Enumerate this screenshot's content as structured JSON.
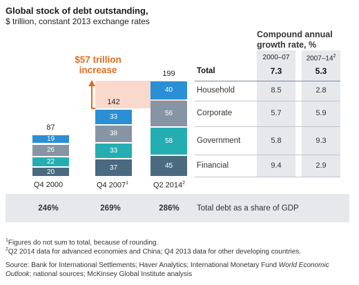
{
  "title": "Global stock of debt outstanding,",
  "subtitle": "$ trillion, constant 2013 exchange rates",
  "cagr": {
    "title_line1": "Compound annual",
    "title_line2": "growth rate, %",
    "col1": "2000–07",
    "col2": "2007–14",
    "col2_sup": "2"
  },
  "increase": {
    "line1": "$57 trillion",
    "line2": "increase"
  },
  "chart_data": {
    "type": "bar",
    "stacked": true,
    "categories": [
      "Q4 2000",
      "Q4 2007",
      "Q2 2014"
    ],
    "category_sups": [
      "",
      "1",
      "2"
    ],
    "totals": [
      87,
      142,
      199
    ],
    "series": [
      {
        "name": "Financial",
        "values": [
          20,
          37,
          45
        ],
        "color": "#4a6a80"
      },
      {
        "name": "Government",
        "values": [
          22,
          33,
          58
        ],
        "color": "#25aeb1"
      },
      {
        "name": "Corporate",
        "values": [
          26,
          38,
          56
        ],
        "color": "#8694a3"
      },
      {
        "name": "Household",
        "values": [
          19,
          33,
          40
        ],
        "color": "#2a8fd4"
      }
    ]
  },
  "table": {
    "rows": [
      {
        "label": "Total",
        "c1": "7.3",
        "c2": "5.3",
        "bold": true
      },
      {
        "label": "Household",
        "c1": "8.5",
        "c2": "2.8"
      },
      {
        "label": "Corporate",
        "c1": "5.7",
        "c2": "5.9"
      },
      {
        "label": "Government",
        "c1": "5.8",
        "c2": "9.3"
      },
      {
        "label": "Financial",
        "c1": "9.4",
        "c2": "2.9"
      }
    ]
  },
  "gdp": {
    "values": [
      "246%",
      "269%",
      "286%"
    ],
    "label": "Total debt as a share of GDP"
  },
  "footnotes": {
    "n1_sup": "1",
    "n1": "Figures do not sum to total, because of rounding.",
    "n2_sup": "2",
    "n2": "Q2 2014 data for advanced economies and China; Q4 2013 data for other developing countries."
  },
  "source": {
    "prefix": "Source: Bank for International Settlements; Haver Analytics; International Monetary Fund ",
    "italic": "World Economic Outlook",
    "suffix": "; national sources; McKinsey Global Institute analysis"
  }
}
